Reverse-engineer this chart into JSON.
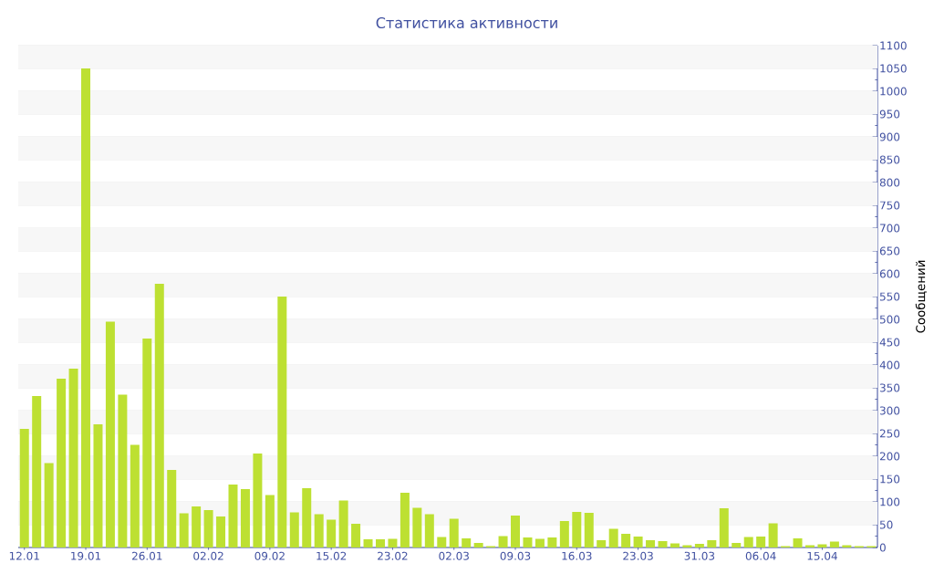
{
  "chart_data": {
    "type": "bar",
    "title": "Статистика активности",
    "ylabel": "Сообщений",
    "categories": [
      "12.01",
      null,
      null,
      null,
      null,
      "19.01",
      null,
      null,
      null,
      null,
      "26.01",
      null,
      null,
      null,
      null,
      "02.02",
      null,
      null,
      null,
      null,
      "09.02",
      null,
      null,
      null,
      null,
      "15.02",
      null,
      null,
      null,
      null,
      "23.02",
      null,
      null,
      null,
      null,
      "02.03",
      null,
      null,
      null,
      null,
      "09.03",
      null,
      null,
      null,
      null,
      "16.03",
      null,
      null,
      null,
      null,
      "23.03",
      null,
      null,
      null,
      null,
      "31.03",
      null,
      null,
      null,
      null,
      "06.04",
      null,
      null,
      null,
      null,
      "15.04",
      null,
      null,
      null,
      null
    ],
    "values": [
      260,
      332,
      185,
      370,
      392,
      1050,
      270,
      495,
      335,
      225,
      458,
      578,
      170,
      75,
      90,
      82,
      68,
      138,
      128,
      206,
      115,
      550,
      77,
      130,
      73,
      61,
      103,
      52,
      18,
      18,
      19,
      120,
      87,
      73,
      23,
      63,
      20,
      10,
      3,
      25,
      70,
      22,
      19,
      22,
      58,
      78,
      76,
      16,
      41,
      30,
      24,
      16,
      14,
      9,
      5,
      8,
      16,
      86,
      10,
      23,
      24,
      53,
      3,
      20,
      5,
      7,
      13,
      5,
      3,
      3
    ],
    "color": "#bde032",
    "ylim": [
      0,
      1100
    ],
    "yticks": [
      0,
      50,
      100,
      150,
      200,
      250,
      300,
      350,
      400,
      450,
      500,
      550,
      600,
      650,
      700,
      750,
      800,
      850,
      900,
      950,
      1000,
      1050,
      1100
    ],
    "grid": "y"
  }
}
